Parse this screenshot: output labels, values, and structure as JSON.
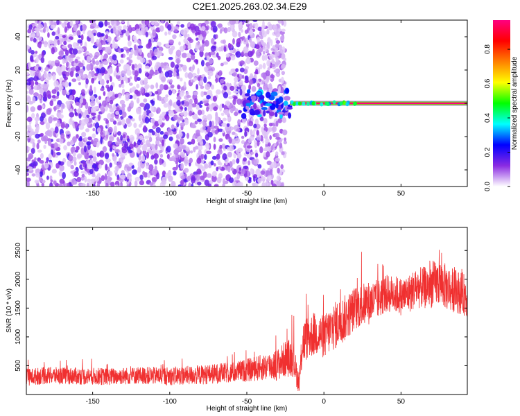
{
  "title": "C2E1.2025.263.02.34.E29",
  "chart_data": [
    {
      "type": "heatmap",
      "xlabel": "Height of straight line (km)",
      "ylabel": "Frequency (Hz)",
      "xlim": [
        -193,
        93
      ],
      "ylim": [
        -50,
        50
      ],
      "xticks": [
        -150,
        -100,
        -50,
        0,
        50
      ],
      "yticks": [
        -40,
        -20,
        0,
        20,
        40
      ],
      "xtick_labels": [
        "-150",
        "-100",
        "-50",
        "0",
        "50"
      ],
      "ytick_labels": [
        "-40",
        "-20",
        "0",
        "20",
        "40"
      ],
      "colorbar": {
        "label": "Normalized spectral amplitude",
        "range": [
          0,
          0.97
        ],
        "ticks": [
          0.0,
          0.2,
          0.4,
          0.6,
          0.8
        ],
        "tick_labels": [
          "0.0",
          "0.2",
          "0.4",
          "0.6",
          "0.8"
        ],
        "colors": [
          "#ffffff",
          "#8a2be2",
          "#0000ff",
          "#00ffff",
          "#00ff00",
          "#ffff00",
          "#ff8000",
          "#ff0000",
          "#ff0080"
        ]
      },
      "regions": [
        {
          "x_range": [
            -193,
            -25
          ],
          "freq_range": [
            -50,
            50
          ],
          "amplitude_range": [
            0.0,
            0.15
          ],
          "description": "scattered noise"
        },
        {
          "x_range": [
            -52,
            -22
          ],
          "freq_range": [
            -8,
            8
          ],
          "amplitude_range": [
            0.05,
            0.35
          ],
          "description": "transition"
        },
        {
          "x_range": [
            -22,
            93
          ],
          "freq": 0,
          "amplitude_range": [
            0.85,
            0.97
          ],
          "description": "carrier line"
        }
      ]
    },
    {
      "type": "line",
      "xlabel": "Height of straight line (km)",
      "ylabel": "SNR (10 * v/v)",
      "xlim": [
        -193,
        93
      ],
      "ylim": [
        0,
        2900
      ],
      "xticks": [
        -150,
        -100,
        -50,
        0,
        50
      ],
      "yticks": [
        500,
        1000,
        1500,
        2000,
        2500
      ],
      "xtick_labels": [
        "-150",
        "-100",
        "-50",
        "0",
        "50"
      ],
      "ytick_labels": [
        "500",
        "1000",
        "1500",
        "2000",
        "2500"
      ],
      "series": [
        {
          "color": "#f03030",
          "x": [
            -193,
            -180,
            -160,
            -140,
            -120,
            -100,
            -80,
            -60,
            -50,
            -40,
            -30,
            -25,
            -20,
            -16,
            -14,
            -10,
            -5,
            0,
            5,
            10,
            15,
            20,
            25,
            30,
            35,
            40,
            45,
            50,
            55,
            60,
            65,
            70,
            75,
            80,
            85,
            90,
            93
          ],
          "y": [
            300,
            330,
            320,
            310,
            330,
            320,
            340,
            380,
            420,
            470,
            520,
            620,
            650,
            150,
            900,
            1000,
            1050,
            1000,
            1150,
            1250,
            1350,
            1500,
            1550,
            1600,
            1650,
            1750,
            1750,
            1700,
            1750,
            1850,
            1850,
            1900,
            1950,
            1850,
            1800,
            1750,
            1700
          ],
          "spread": [
            150,
            150,
            150,
            150,
            150,
            160,
            170,
            180,
            200,
            230,
            280,
            320,
            350,
            150,
            400,
            380,
            380,
            380,
            420,
            420,
            400,
            380,
            380,
            380,
            350,
            330,
            330,
            330,
            340,
            350,
            370,
            400,
            400,
            400,
            380,
            370,
            370
          ]
        }
      ]
    }
  ]
}
